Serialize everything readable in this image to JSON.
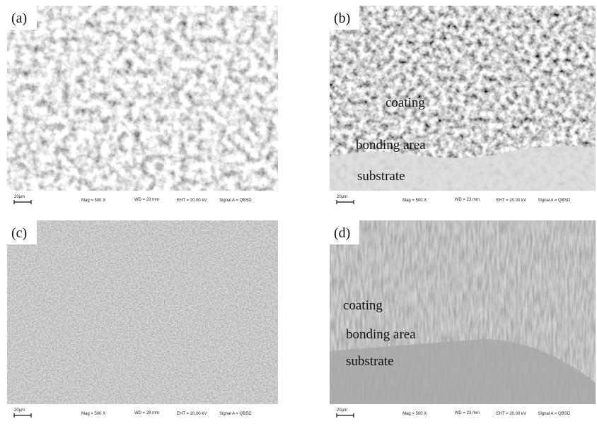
{
  "panels": [
    {
      "label": "(a)",
      "info": {
        "scale": "20μm",
        "mag": "Mag = 500 X",
        "wd": "WD = 23 mm",
        "eht": "EHT = 20.00 kV",
        "signal": "Signal A = QBSD"
      }
    },
    {
      "label": "(b)",
      "annotations": [
        "coating",
        "bonding area",
        "substrate"
      ],
      "info": {
        "scale": "20μm",
        "mag": "Mag = 500 X",
        "wd": "WD = 23 mm",
        "eht": "EHT = 20.00 kV",
        "signal": "Signal A = QBSD"
      }
    },
    {
      "label": "(c)",
      "info": {
        "scale": "20μm",
        "mag": "Mag = 500 X",
        "wd": "WD = 28 mm",
        "eht": "EHT = 20.00 kV",
        "signal": "Signal A = QBSD"
      }
    },
    {
      "label": "(d)",
      "annotations": [
        "coating",
        "bonding area",
        "substrate"
      ],
      "info": {
        "scale": "20μm",
        "mag": "Mag = 500 X",
        "wd": "WD = 23 mm",
        "eht": "EHT = 20.00 kV",
        "signal": "Signal A = QBSD"
      }
    }
  ]
}
